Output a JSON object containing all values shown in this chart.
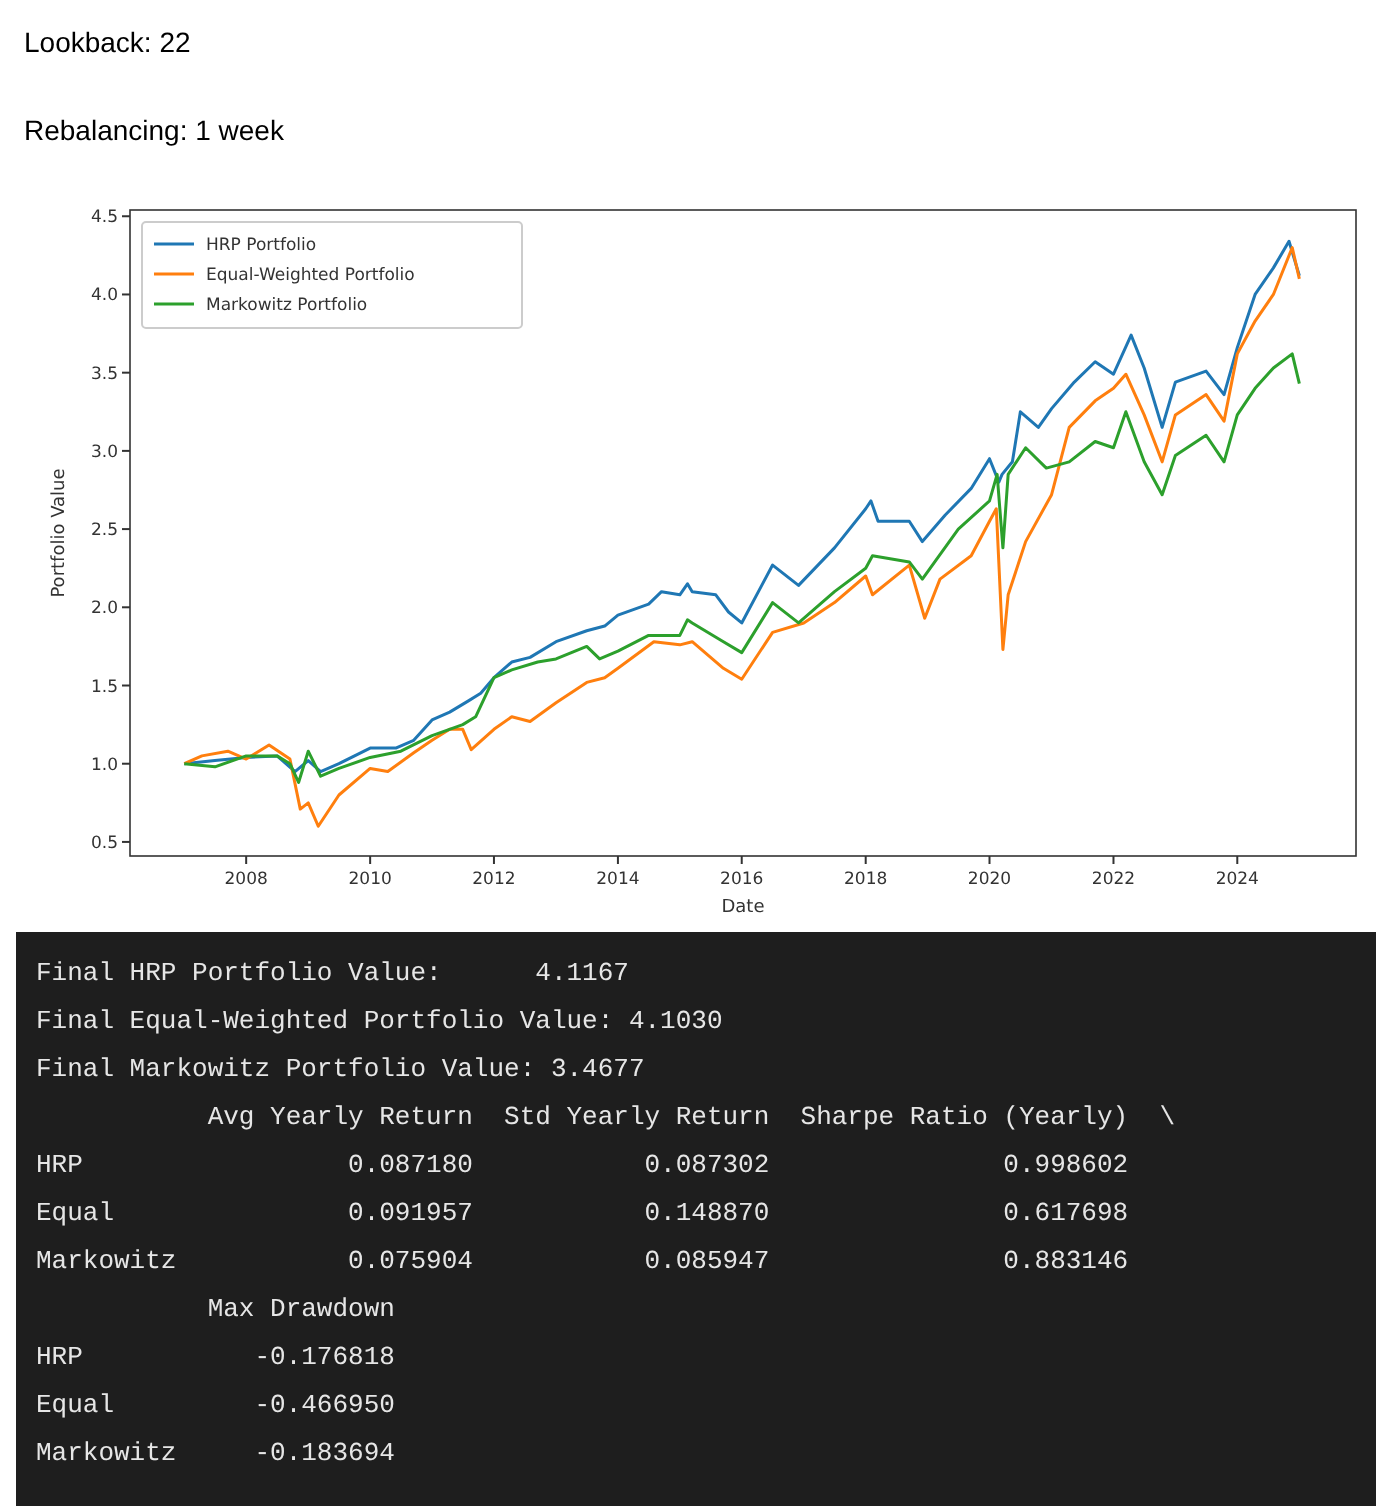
{
  "chart_data": {
    "type": "line",
    "xlabel": "Date",
    "ylabel": "Portfolio Value",
    "xlim": [
      "2006-02-15",
      "2025-12-01"
    ],
    "ylim": [
      0.41,
      4.54
    ],
    "xticks": [
      "2008",
      "2010",
      "2012",
      "2014",
      "2016",
      "2018",
      "2020",
      "2022",
      "2024"
    ],
    "yticks": [
      {
        "value": 0.5,
        "label": "0.5"
      },
      {
        "value": 1,
        "label": "1.0"
      },
      {
        "value": 1.5,
        "label": "1.5"
      },
      {
        "value": 2,
        "label": "2.0"
      },
      {
        "value": 2.5,
        "label": "2.5"
      },
      {
        "value": 3,
        "label": "3.0"
      },
      {
        "value": 3.5,
        "label": "3.5"
      },
      {
        "value": 4,
        "label": "4.0"
      },
      {
        "value": 4.5,
        "label": "4.5"
      }
    ],
    "legend": "top left",
    "grid": false,
    "series": [
      {
        "name": "HRP Portfolio",
        "color": "#1f77b4",
        "x": [
          "2007-01-01",
          "2007-07-01",
          "2008-01-01",
          "2008-07-01",
          "2008-10-15",
          "2009-01-01",
          "2009-03-15",
          "2009-07-01",
          "2010-01-01",
          "2010-06-01",
          "2010-09-15",
          "2011-01-01",
          "2011-04-15",
          "2011-08-01",
          "2011-10-15",
          "2012-01-01",
          "2012-04-15",
          "2012-08-01",
          "2013-01-01",
          "2013-07-01",
          "2013-10-15",
          "2014-01-01",
          "2014-07-01",
          "2014-09-15",
          "2015-01-01",
          "2015-02-15",
          "2015-03-15",
          "2015-08-01",
          "2015-10-15",
          "2016-01-01",
          "2016-07-01",
          "2016-12-01",
          "2017-07-01",
          "2018-01-01",
          "2018-02-01",
          "2018-03-15",
          "2018-09-15",
          "2018-12-01",
          "2019-04-15",
          "2019-09-15",
          "2020-01-01",
          "2020-02-25",
          "2020-03-15",
          "2020-05-15",
          "2020-07-01",
          "2020-10-15",
          "2021-01-01",
          "2021-05-15",
          "2021-09-15",
          "2022-01-01",
          "2022-04-15",
          "2022-07-01",
          "2022-10-15",
          "2023-01-01",
          "2023-07-01",
          "2023-10-15",
          "2024-01-01",
          "2024-04-15",
          "2024-08-01",
          "2024-11-01",
          "2025-01-01"
        ],
        "values": [
          1.0,
          1.02,
          1.04,
          1.05,
          0.95,
          1.02,
          0.95,
          1.0,
          1.1,
          1.1,
          1.15,
          1.28,
          1.33,
          1.4,
          1.45,
          1.55,
          1.65,
          1.68,
          1.78,
          1.85,
          1.88,
          1.95,
          2.02,
          2.1,
          2.08,
          2.15,
          2.1,
          2.08,
          1.97,
          1.9,
          2.27,
          2.14,
          2.38,
          2.63,
          2.68,
          2.55,
          2.55,
          2.42,
          2.59,
          2.76,
          2.95,
          2.8,
          2.85,
          2.93,
          3.25,
          3.15,
          3.27,
          3.44,
          3.57,
          3.49,
          3.74,
          3.53,
          3.15,
          3.44,
          3.51,
          3.36,
          3.66,
          4.0,
          4.17,
          4.34,
          4.12
        ]
      },
      {
        "name": "Equal-Weighted Portfolio",
        "color": "#ff7f0e",
        "x": [
          "2007-01-01",
          "2007-04-15",
          "2007-09-15",
          "2008-01-01",
          "2008-05-15",
          "2008-09-15",
          "2008-11-15",
          "2009-01-01",
          "2009-03-01",
          "2009-07-01",
          "2010-01-01",
          "2010-04-15",
          "2010-09-15",
          "2011-01-01",
          "2011-04-15",
          "2011-07-01",
          "2011-08-20",
          "2012-01-01",
          "2012-04-15",
          "2012-08-01",
          "2013-01-01",
          "2013-07-01",
          "2013-10-15",
          "2014-01-01",
          "2014-08-01",
          "2015-01-01",
          "2015-03-15",
          "2015-09-15",
          "2016-01-01",
          "2016-07-01",
          "2017-01-01",
          "2017-07-01",
          "2018-01-01",
          "2018-02-10",
          "2018-09-15",
          "2018-12-15",
          "2019-03-15",
          "2019-09-15",
          "2020-01-01",
          "2020-02-10",
          "2020-03-20",
          "2020-04-20",
          "2020-08-01",
          "2021-01-01",
          "2021-04-15",
          "2021-09-15",
          "2022-01-01",
          "2022-03-15",
          "2022-07-01",
          "2022-10-15",
          "2023-01-01",
          "2023-07-01",
          "2023-10-15",
          "2024-01-01",
          "2024-04-15",
          "2024-08-01",
          "2024-11-20",
          "2025-01-01"
        ],
        "values": [
          1.0,
          1.05,
          1.08,
          1.03,
          1.12,
          1.03,
          0.71,
          0.75,
          0.6,
          0.8,
          0.97,
          0.95,
          1.07,
          1.15,
          1.22,
          1.22,
          1.09,
          1.22,
          1.3,
          1.27,
          1.39,
          1.52,
          1.55,
          1.61,
          1.78,
          1.76,
          1.78,
          1.61,
          1.54,
          1.84,
          1.9,
          2.03,
          2.2,
          2.08,
          2.27,
          1.93,
          2.18,
          2.33,
          2.55,
          2.63,
          1.73,
          2.08,
          2.42,
          2.72,
          3.15,
          3.32,
          3.4,
          3.49,
          3.23,
          2.93,
          3.23,
          3.36,
          3.19,
          3.62,
          3.83,
          4.0,
          4.3,
          4.1
        ]
      },
      {
        "name": "Markowitz Portfolio",
        "color": "#2ca02c",
        "x": [
          "2007-01-01",
          "2007-07-01",
          "2008-01-01",
          "2008-07-01",
          "2008-09-15",
          "2008-11-05",
          "2009-01-01",
          "2009-03-15",
          "2009-07-01",
          "2010-01-01",
          "2010-07-01",
          "2011-01-01",
          "2011-07-01",
          "2011-09-15",
          "2012-01-01",
          "2012-04-15",
          "2012-09-15",
          "2013-01-01",
          "2013-07-01",
          "2013-09-15",
          "2014-01-01",
          "2014-07-01",
          "2015-01-01",
          "2015-02-15",
          "2015-03-15",
          "2015-09-15",
          "2016-01-01",
          "2016-07-01",
          "2016-12-01",
          "2017-07-01",
          "2018-01-01",
          "2018-02-10",
          "2018-09-15",
          "2018-12-01",
          "2019-07-01",
          "2020-01-01",
          "2020-02-15",
          "2020-03-20",
          "2020-04-20",
          "2020-08-01",
          "2020-12-01",
          "2021-04-15",
          "2021-09-15",
          "2022-01-01",
          "2022-03-15",
          "2022-07-01",
          "2022-10-15",
          "2023-01-01",
          "2023-07-01",
          "2023-10-15",
          "2024-01-01",
          "2024-04-15",
          "2024-08-01",
          "2024-11-20",
          "2025-01-01"
        ],
        "values": [
          1.0,
          0.98,
          1.05,
          1.05,
          1.0,
          0.88,
          1.08,
          0.92,
          0.97,
          1.04,
          1.08,
          1.18,
          1.25,
          1.3,
          1.55,
          1.6,
          1.65,
          1.67,
          1.75,
          1.67,
          1.72,
          1.82,
          1.82,
          1.92,
          1.9,
          1.78,
          1.71,
          2.03,
          1.9,
          2.1,
          2.25,
          2.33,
          2.29,
          2.18,
          2.5,
          2.68,
          2.85,
          2.38,
          2.85,
          3.02,
          2.89,
          2.93,
          3.06,
          3.02,
          3.25,
          2.93,
          2.72,
          2.97,
          3.1,
          2.93,
          3.23,
          3.4,
          3.53,
          3.62,
          3.43
        ]
      }
    ],
    "annotations": [
      "Lookback: 22",
      "Rebalancing: 1 week",
      "Final HRP Portfolio Value:      4.1167",
      "Final Equal-Weighted Portfolio Value: 4.1030",
      "Final Markowitz Portfolio Value: 3.4677",
      "           Avg Yearly Return  Std Yearly Return  Sharpe Ratio (Yearly)  \\",
      "HRP                 0.087180           0.087302               0.998602",
      "Equal               0.091957           0.148870               0.617698",
      "Markowitz           0.075904           0.085947               0.883146",
      "           Max Drawdown",
      "HRP           -0.176818",
      "Equal         -0.466950",
      "Markowitz     -0.183694"
    ]
  }
}
